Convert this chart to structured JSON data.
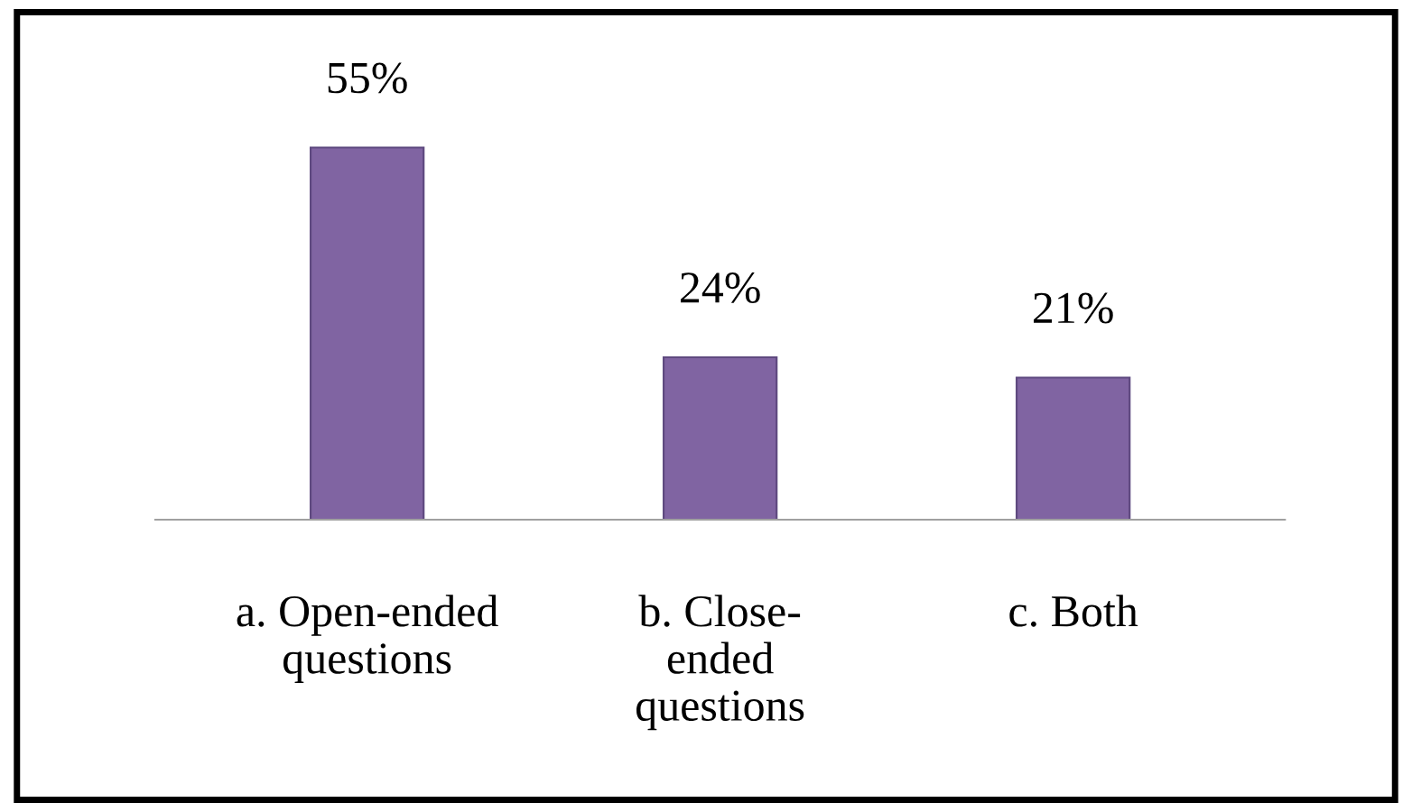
{
  "chart_data": {
    "type": "bar",
    "categories": [
      "a. Open-ended\nquestions",
      "b. Close-\nended\nquestions",
      "c. Both"
    ],
    "values": [
      55,
      24,
      21
    ],
    "color": "#8064a2",
    "value_labels": [
      "55%",
      "24%",
      "21%"
    ],
    "grid": false,
    "legend": false
  }
}
